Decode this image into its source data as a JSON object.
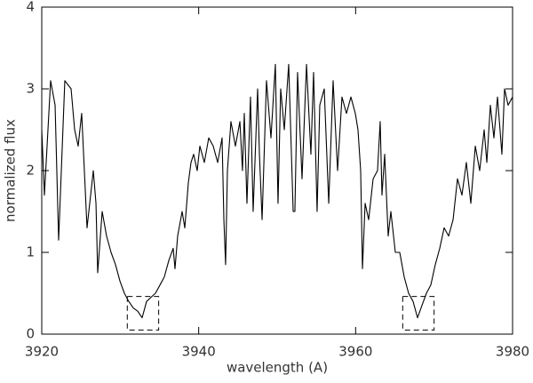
{
  "chart_data": {
    "type": "line",
    "xlabel": "wavelength (A)",
    "ylabel": "normalized flux",
    "xlim": [
      3920,
      3980
    ],
    "ylim": [
      0,
      4
    ],
    "xticks": [
      3920,
      3940,
      3960,
      3980
    ],
    "yticks": [
      0,
      1,
      2,
      3,
      4
    ],
    "color": "#000000",
    "x": [
      3920.0,
      3920.34,
      3921.13,
      3921.7,
      3922.15,
      3922.94,
      3923.74,
      3924.19,
      3924.64,
      3925.09,
      3925.43,
      3925.77,
      3926.57,
      3926.91,
      3927.13,
      3927.7,
      3928.26,
      3928.83,
      3929.4,
      3929.96,
      3930.53,
      3931.09,
      3931.66,
      3932.23,
      3932.79,
      3933.36,
      3933.92,
      3934.49,
      3935.06,
      3935.62,
      3936.19,
      3936.75,
      3936.98,
      3937.32,
      3937.89,
      3938.23,
      3938.68,
      3939.02,
      3939.36,
      3939.81,
      3940.15,
      3940.72,
      3941.28,
      3941.85,
      3942.42,
      3942.98,
      3943.21,
      3943.43,
      3943.66,
      3944.11,
      3944.68,
      3945.25,
      3945.58,
      3945.81,
      3946.15,
      3946.6,
      3946.94,
      3947.51,
      3947.74,
      3948.08,
      3948.64,
      3949.21,
      3949.77,
      3950.11,
      3950.45,
      3950.91,
      3951.47,
      3952.04,
      3952.26,
      3952.6,
      3953.17,
      3953.74,
      3954.3,
      3954.64,
      3955.09,
      3955.43,
      3956.0,
      3956.57,
      3957.13,
      3957.7,
      3958.26,
      3958.83,
      3959.4,
      3959.96,
      3960.3,
      3960.64,
      3960.87,
      3961.21,
      3961.66,
      3962.23,
      3962.79,
      3963.13,
      3963.36,
      3963.7,
      3964.15,
      3964.49,
      3965.06,
      3965.62,
      3966.19,
      3966.75,
      3967.32,
      3967.89,
      3968.45,
      3969.02,
      3969.58,
      3970.15,
      3970.72,
      3971.28,
      3971.85,
      3972.42,
      3972.98,
      3973.55,
      3974.11,
      3974.68,
      3975.25,
      3975.81,
      3976.38,
      3976.72,
      3977.17,
      3977.62,
      3978.08,
      3978.64,
      3978.98,
      3979.43,
      3980.0
    ],
    "values": [
      2.5,
      1.7,
      3.1,
      2.8,
      1.15,
      3.1,
      3.0,
      2.5,
      2.3,
      2.7,
      2.0,
      1.3,
      2.0,
      1.6,
      0.75,
      1.5,
      1.2,
      1.0,
      0.85,
      0.65,
      0.5,
      0.4,
      0.32,
      0.28,
      0.2,
      0.4,
      0.45,
      0.5,
      0.6,
      0.7,
      0.9,
      1.05,
      0.8,
      1.2,
      1.5,
      1.3,
      1.85,
      2.1,
      2.2,
      2.0,
      2.3,
      2.1,
      2.4,
      2.3,
      2.1,
      2.4,
      1.4,
      0.85,
      2.0,
      2.6,
      2.3,
      2.6,
      2.0,
      2.7,
      1.6,
      2.9,
      1.5,
      3.0,
      2.2,
      1.4,
      3.1,
      2.4,
      3.3,
      1.6,
      3.0,
      2.5,
      3.3,
      1.5,
      1.5,
      3.2,
      1.9,
      3.3,
      2.2,
      3.2,
      1.5,
      2.8,
      3.0,
      1.6,
      3.1,
      2.0,
      2.9,
      2.7,
      2.9,
      2.7,
      2.5,
      2.0,
      0.8,
      1.6,
      1.4,
      1.9,
      2.0,
      2.6,
      1.7,
      2.2,
      1.2,
      1.5,
      1.0,
      1.0,
      0.7,
      0.5,
      0.4,
      0.2,
      0.35,
      0.5,
      0.6,
      0.85,
      1.05,
      1.3,
      1.2,
      1.4,
      1.9,
      1.7,
      2.1,
      1.6,
      2.3,
      2.0,
      2.5,
      2.1,
      2.8,
      2.4,
      2.9,
      2.2,
      3.0,
      2.8,
      2.9
    ],
    "boxes": [
      {
        "xlim": [
          3930.9,
          3934.9
        ],
        "ylim": [
          0.05,
          0.46
        ]
      },
      {
        "xlim": [
          3966.0,
          3970.0
        ],
        "ylim": [
          0.05,
          0.46
        ]
      }
    ]
  }
}
